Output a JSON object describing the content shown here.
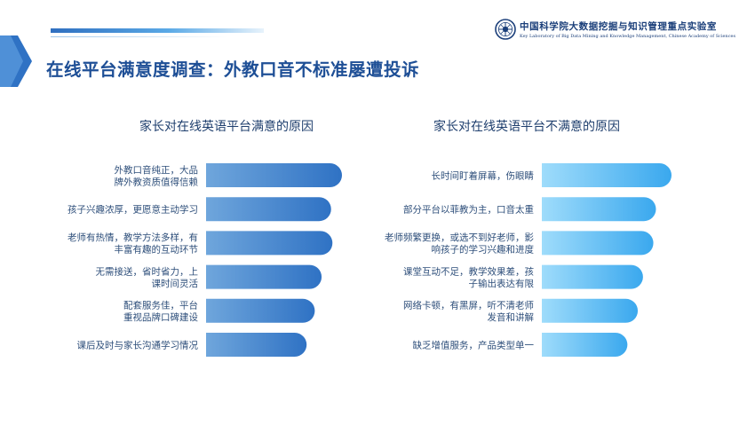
{
  "header": {
    "org_name_cn": "中国科学院大数据挖掘与知识管理重点实验室",
    "org_name_en": "Key Laboratory of Big Data Mining and Knowledge Management, Chinese Academy of Sciences"
  },
  "page": {
    "title": "在线平台满意度调查：外教口音不标准屡遭投诉"
  },
  "colors": {
    "accent": "#1e4f96",
    "left_bar_start": "#6fa6dc",
    "left_bar_end": "#2f72c4",
    "right_bar_start": "#9fdcfb",
    "right_bar_end": "#3aa8ee"
  },
  "chart_data": [
    {
      "type": "bar",
      "orientation": "horizontal",
      "title": "家长对在线英语平台满意的原因",
      "categories": [
        [
          "外教口音纯正，大品",
          "牌外教资质值得信赖"
        ],
        [
          "孩子兴趣浓厚，更愿意主动学习"
        ],
        [
          "老师有热情，教学方法多样，有",
          "丰富有趣的互动环节"
        ],
        [
          "无需接送，省时省力，上",
          "课时间灵活"
        ],
        [
          "配套服务佳，平台",
          "重视品牌口碑建设"
        ],
        [
          "课后及时与家长沟通学习情况"
        ]
      ],
      "values": [
        100,
        92,
        93,
        85,
        80,
        74
      ],
      "xlim": [
        0,
        100
      ]
    },
    {
      "type": "bar",
      "orientation": "horizontal",
      "title": "家长对在线英语平台不满意的原因",
      "categories": [
        [
          "长时间盯着屏幕，伤眼睛"
        ],
        [
          "部分平台以菲教为主，口音太重"
        ],
        [
          "老师频繁更换，或选不到好老师，影",
          "响孩子的学习兴趣和进度"
        ],
        [
          "课堂互动不足，教学效果差，孩",
          "子输出表达有限"
        ],
        [
          "网络卡顿，有黑屏，听不清老师",
          "发音和讲解"
        ],
        [
          "缺乏增值服务，产品类型单一"
        ]
      ],
      "values": [
        100,
        88,
        86,
        78,
        74,
        66
      ],
      "xlim": [
        0,
        100
      ]
    }
  ]
}
